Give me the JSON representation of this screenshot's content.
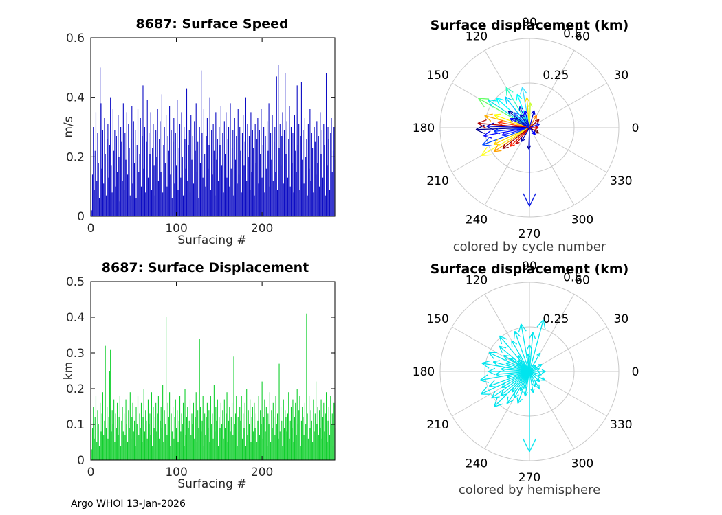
{
  "footer": {
    "text": "Argo WHOI 13-Jan-2026"
  },
  "chart_data": [
    {
      "type": "bar",
      "id": "speed",
      "title": "8687: Surface Speed",
      "ylabel": "m/s",
      "xlabel": "Surfacing #",
      "ylim": [
        0,
        0.6
      ],
      "yticks": [
        0,
        0.2,
        0.4,
        0.6
      ],
      "xlim": [
        0,
        285
      ],
      "xticks": [
        0,
        100,
        200
      ],
      "bar_color": "#0d0dc4",
      "values": [
        0.02,
        0.14,
        0.3,
        0.09,
        0.22,
        0.35,
        0.12,
        0.28,
        0.18,
        0.06,
        0.5,
        0.38,
        0.16,
        0.29,
        0.11,
        0.33,
        0.21,
        0.07,
        0.26,
        0.31,
        0.13,
        0.24,
        0.4,
        0.17,
        0.08,
        0.36,
        0.22,
        0.29,
        0.1,
        0.27,
        0.15,
        0.34,
        0.2,
        0.05,
        0.3,
        0.25,
        0.12,
        0.38,
        0.09,
        0.28,
        0.19,
        0.35,
        0.14,
        0.31,
        0.23,
        0.07,
        0.26,
        0.37,
        0.11,
        0.32,
        0.18,
        0.29,
        0.06,
        0.24,
        0.36,
        0.15,
        0.21,
        0.33,
        0.1,
        0.27,
        0.44,
        0.16,
        0.3,
        0.08,
        0.25,
        0.39,
        0.13,
        0.28,
        0.21,
        0.35,
        0.09,
        0.23,
        0.31,
        0.17,
        0.07,
        0.29,
        0.2,
        0.36,
        0.12,
        0.26,
        0.32,
        0.15,
        0.41,
        0.08,
        0.24,
        0.3,
        0.18,
        0.34,
        0.1,
        0.27,
        0.22,
        0.37,
        0.14,
        0.29,
        0.06,
        0.25,
        0.33,
        0.11,
        0.28,
        0.17,
        0.39,
        0.09,
        0.23,
        0.31,
        0.13,
        0.35,
        0.2,
        0.07,
        0.3,
        0.26,
        0.16,
        0.43,
        0.12,
        0.24,
        0.29,
        0.08,
        0.34,
        0.19,
        0.27,
        0.11,
        0.32,
        0.22,
        0.38,
        0.15,
        0.25,
        0.06,
        0.3,
        0.18,
        0.49,
        0.28,
        0.13,
        0.36,
        0.21,
        0.1,
        0.27,
        0.33,
        0.16,
        0.24,
        0.4,
        0.09,
        0.29,
        0.14,
        0.31,
        0.22,
        0.07,
        0.35,
        0.19,
        0.26,
        0.12,
        0.3,
        0.24,
        0.37,
        0.17,
        0.28,
        0.08,
        0.32,
        0.21,
        0.35,
        0.13,
        0.26,
        0.3,
        0.1,
        0.38,
        0.16,
        0.23,
        0.29,
        0.07,
        0.33,
        0.19,
        0.27,
        0.11,
        0.36,
        0.14,
        0.3,
        0.22,
        0.08,
        0.28,
        0.34,
        0.17,
        0.25,
        0.4,
        0.12,
        0.31,
        0.2,
        0.27,
        0.09,
        0.35,
        0.15,
        0.29,
        0.23,
        0.07,
        0.31,
        0.18,
        0.26,
        0.33,
        0.11,
        0.29,
        0.21,
        0.36,
        0.13,
        0.24,
        0.3,
        0.08,
        0.27,
        0.16,
        0.32,
        0.22,
        0.38,
        0.1,
        0.28,
        0.19,
        0.34,
        0.12,
        0.25,
        0.3,
        0.15,
        0.47,
        0.09,
        0.51,
        0.23,
        0.31,
        0.17,
        0.27,
        0.35,
        0.11,
        0.29,
        0.48,
        0.21,
        0.32,
        0.13,
        0.26,
        0.37,
        0.1,
        0.3,
        0.18,
        0.28,
        0.08,
        0.34,
        0.22,
        0.15,
        0.44,
        0.24,
        0.31,
        0.09,
        0.27,
        0.45,
        0.19,
        0.29,
        0.11,
        0.33,
        0.2,
        0.26,
        0.07,
        0.31,
        0.16,
        0.36,
        0.12,
        0.28,
        0.23,
        0.08,
        0.3,
        0.25,
        0.14,
        0.32,
        0.18,
        0.27,
        0.1,
        0.35,
        0.21,
        0.29,
        0.13,
        0.31,
        0.24,
        0.07,
        0.48,
        0.17,
        0.3,
        0.26,
        0.09,
        0.28,
        0.33,
        0.15,
        0.22,
        0.3,
        0.19
      ]
    },
    {
      "type": "bar",
      "id": "disp",
      "title": "8687: Surface Displacement",
      "ylabel": "km",
      "xlabel": "Surfacing #",
      "ylim": [
        0,
        0.5
      ],
      "yticks": [
        0,
        0.1,
        0.2,
        0.3,
        0.4,
        0.5
      ],
      "xlim": [
        0,
        285
      ],
      "xticks": [
        0,
        100,
        200
      ],
      "bar_color": "#12cf2e",
      "values": [
        0.03,
        0.09,
        0.15,
        0.06,
        0.12,
        0.18,
        0.05,
        0.14,
        0.1,
        0.04,
        0.16,
        0.08,
        0.13,
        0.19,
        0.07,
        0.11,
        0.32,
        0.09,
        0.15,
        0.06,
        0.12,
        0.25,
        0.31,
        0.08,
        0.14,
        0.1,
        0.17,
        0.05,
        0.13,
        0.09,
        0.16,
        0.07,
        0.12,
        0.18,
        0.04,
        0.11,
        0.15,
        0.08,
        0.13,
        0.07,
        0.17,
        0.1,
        0.05,
        0.14,
        0.09,
        0.19,
        0.06,
        0.12,
        0.16,
        0.08,
        0.11,
        0.04,
        0.15,
        0.1,
        0.18,
        0.07,
        0.13,
        0.09,
        0.16,
        0.05,
        0.12,
        0.2,
        0.08,
        0.14,
        0.11,
        0.06,
        0.17,
        0.1,
        0.13,
        0.07,
        0.19,
        0.04,
        0.15,
        0.09,
        0.12,
        0.16,
        0.08,
        0.13,
        0.18,
        0.06,
        0.11,
        0.15,
        0.09,
        0.21,
        0.05,
        0.14,
        0.1,
        0.4,
        0.07,
        0.16,
        0.12,
        0.19,
        0.04,
        0.13,
        0.08,
        0.15,
        0.06,
        0.12,
        0.17,
        0.09,
        0.14,
        0.05,
        0.11,
        0.18,
        0.08,
        0.13,
        0.1,
        0.16,
        0.04,
        0.2,
        0.07,
        0.12,
        0.15,
        0.09,
        0.11,
        0.17,
        0.07,
        0.13,
        0.1,
        0.16,
        0.06,
        0.12,
        0.19,
        0.05,
        0.14,
        0.09,
        0.34,
        0.15,
        0.08,
        0.11,
        0.18,
        0.04,
        0.13,
        0.07,
        0.12,
        0.16,
        0.09,
        0.14,
        0.05,
        0.18,
        0.1,
        0.13,
        0.06,
        0.21,
        0.08,
        0.15,
        0.11,
        0.17,
        0.04,
        0.12,
        0.09,
        0.16,
        0.1,
        0.14,
        0.06,
        0.17,
        0.09,
        0.13,
        0.19,
        0.05,
        0.11,
        0.15,
        0.08,
        0.12,
        0.16,
        0.07,
        0.29,
        0.1,
        0.13,
        0.18,
        0.04,
        0.12,
        0.08,
        0.15,
        0.11,
        0.18,
        0.06,
        0.13,
        0.09,
        0.16,
        0.04,
        0.2,
        0.07,
        0.14,
        0.1,
        0.17,
        0.05,
        0.12,
        0.15,
        0.08,
        0.16,
        0.09,
        0.13,
        0.05,
        0.11,
        0.18,
        0.07,
        0.14,
        0.1,
        0.22,
        0.06,
        0.12,
        0.17,
        0.08,
        0.15,
        0.04,
        0.13,
        0.1,
        0.19,
        0.05,
        0.14,
        0.09,
        0.16,
        0.12,
        0.07,
        0.18,
        0.1,
        0.13,
        0.06,
        0.27,
        0.08,
        0.15,
        0.11,
        0.04,
        0.17,
        0.09,
        0.14,
        0.12,
        0.08,
        0.13,
        0.19,
        0.06,
        0.11,
        0.15,
        0.09,
        0.17,
        0.05,
        0.12,
        0.16,
        0.07,
        0.2,
        0.1,
        0.14,
        0.18,
        0.04,
        0.11,
        0.15,
        0.12,
        0.07,
        0.16,
        0.1,
        0.41,
        0.13,
        0.06,
        0.18,
        0.09,
        0.14,
        0.11,
        0.05,
        0.17,
        0.08,
        0.13,
        0.22,
        0.1,
        0.15,
        0.07,
        0.14,
        0.09,
        0.17,
        0.06,
        0.12,
        0.16,
        0.08,
        0.13,
        0.19,
        0.05,
        0.11,
        0.15,
        0.07,
        0.18,
        0.1,
        0.13,
        0.04,
        0.16,
        0.09
      ]
    },
    {
      "type": "polar_quiver",
      "id": "polar_cycle",
      "title": "Surface displacement (km)",
      "caption": "colored by cycle number",
      "rmax": 0.5,
      "rticks": [
        0.25,
        0.5
      ],
      "rtick_labels": [
        "0.25",
        "0.5"
      ],
      "angle_ticks": [
        0,
        30,
        60,
        90,
        120,
        150,
        180,
        210,
        240,
        270,
        300,
        330
      ],
      "vectors": [
        {
          "a": 270,
          "r": 0.44,
          "c": "#0010e0"
        },
        {
          "a": 268,
          "r": 0.12,
          "c": "#0000a0"
        },
        {
          "a": 150,
          "r": 0.33,
          "c": "#66ff66"
        },
        {
          "a": 146,
          "r": 0.28,
          "c": "#00e8e8"
        },
        {
          "a": 138,
          "r": 0.25,
          "c": "#00ffff"
        },
        {
          "a": 128,
          "r": 0.22,
          "c": "#00d0ff"
        },
        {
          "a": 120,
          "r": 0.26,
          "c": "#30ffc0"
        },
        {
          "a": 110,
          "r": 0.2,
          "c": "#00ffff"
        },
        {
          "a": 100,
          "r": 0.23,
          "c": "#40e0ff"
        },
        {
          "a": 95,
          "r": 0.17,
          "c": "#ffe000"
        },
        {
          "a": 88,
          "r": 0.14,
          "c": "#c8ff30"
        },
        {
          "a": 160,
          "r": 0.21,
          "c": "#ffff00"
        },
        {
          "a": 165,
          "r": 0.26,
          "c": "#ffb000"
        },
        {
          "a": 170,
          "r": 0.18,
          "c": "#ff3000"
        },
        {
          "a": 175,
          "r": 0.29,
          "c": "#b00000"
        },
        {
          "a": 178,
          "r": 0.24,
          "c": "#0000d0"
        },
        {
          "a": 182,
          "r": 0.3,
          "c": "#000090"
        },
        {
          "a": 186,
          "r": 0.2,
          "c": "#0030ff"
        },
        {
          "a": 190,
          "r": 0.26,
          "c": "#0000ff"
        },
        {
          "a": 195,
          "r": 0.16,
          "c": "#2020ff"
        },
        {
          "a": 200,
          "r": 0.28,
          "c": "#0048ff"
        },
        {
          "a": 205,
          "r": 0.22,
          "c": "#ffd000"
        },
        {
          "a": 210,
          "r": 0.31,
          "c": "#ffff20"
        },
        {
          "a": 214,
          "r": 0.24,
          "c": "#ffa000"
        },
        {
          "a": 218,
          "r": 0.19,
          "c": "#900000"
        },
        {
          "a": 224,
          "r": 0.15,
          "c": "#ff2000"
        },
        {
          "a": 230,
          "r": 0.12,
          "c": "#c00000"
        },
        {
          "a": 240,
          "r": 0.09,
          "c": "#0000b0"
        },
        {
          "a": 155,
          "r": 0.12,
          "c": "#0000ff"
        },
        {
          "a": 148,
          "r": 0.1,
          "c": "#0020d0"
        },
        {
          "a": 142,
          "r": 0.15,
          "c": "#0000a8"
        },
        {
          "a": 135,
          "r": 0.12,
          "c": "#3060ff"
        },
        {
          "a": 125,
          "r": 0.09,
          "c": "#0000c0"
        },
        {
          "a": 115,
          "r": 0.13,
          "c": "#0038e0"
        },
        {
          "a": 105,
          "r": 0.1,
          "c": "#0000ff"
        },
        {
          "a": 75,
          "r": 0.1,
          "c": "#0000d0"
        },
        {
          "a": 60,
          "r": 0.08,
          "c": "#ff8000"
        },
        {
          "a": 40,
          "r": 0.07,
          "c": "#a00000"
        },
        {
          "a": 20,
          "r": 0.06,
          "c": "#0000ff"
        },
        {
          "a": 0,
          "r": 0.05,
          "c": "#d00000"
        },
        {
          "a": 330,
          "r": 0.06,
          "c": "#600000"
        },
        {
          "a": 310,
          "r": 0.05,
          "c": "#0000ff"
        }
      ]
    },
    {
      "type": "polar_quiver",
      "id": "polar_hemi",
      "title": "Surface displacement (km)",
      "caption": "colored by hemisphere",
      "rmax": 0.5,
      "rticks": [
        0.25,
        0.5
      ],
      "rtick_labels": [
        "0.25",
        "0.5"
      ],
      "angle_ticks": [
        0,
        30,
        60,
        90,
        120,
        150,
        180,
        210,
        240,
        270,
        300,
        330
      ],
      "default_color": "#00e5ee",
      "vectors": [
        {
          "a": 270,
          "r": 0.45
        },
        {
          "a": 75,
          "r": 0.3
        },
        {
          "a": 100,
          "r": 0.27
        },
        {
          "a": 85,
          "r": 0.22
        },
        {
          "a": 110,
          "r": 0.24
        },
        {
          "a": 120,
          "r": 0.2
        },
        {
          "a": 130,
          "r": 0.26
        },
        {
          "a": 140,
          "r": 0.22
        },
        {
          "a": 148,
          "r": 0.17
        },
        {
          "a": 155,
          "r": 0.25
        },
        {
          "a": 160,
          "r": 0.14
        },
        {
          "a": 165,
          "r": 0.21
        },
        {
          "a": 170,
          "r": 0.27
        },
        {
          "a": 175,
          "r": 0.16
        },
        {
          "a": 180,
          "r": 0.23
        },
        {
          "a": 185,
          "r": 0.19
        },
        {
          "a": 190,
          "r": 0.28
        },
        {
          "a": 195,
          "r": 0.13
        },
        {
          "a": 200,
          "r": 0.24
        },
        {
          "a": 205,
          "r": 0.3
        },
        {
          "a": 210,
          "r": 0.18
        },
        {
          "a": 215,
          "r": 0.26
        },
        {
          "a": 220,
          "r": 0.21
        },
        {
          "a": 225,
          "r": 0.28
        },
        {
          "a": 230,
          "r": 0.15
        },
        {
          "a": 235,
          "r": 0.22
        },
        {
          "a": 240,
          "r": 0.17
        },
        {
          "a": 245,
          "r": 0.12
        },
        {
          "a": 250,
          "r": 0.19
        },
        {
          "a": 255,
          "r": 0.1
        },
        {
          "a": 260,
          "r": 0.14
        },
        {
          "a": 280,
          "r": 0.12
        },
        {
          "a": 290,
          "r": 0.09
        },
        {
          "a": 300,
          "r": 0.11
        },
        {
          "a": 315,
          "r": 0.08
        },
        {
          "a": 330,
          "r": 0.1
        },
        {
          "a": 345,
          "r": 0.07
        },
        {
          "a": 0,
          "r": 0.09
        },
        {
          "a": 15,
          "r": 0.06
        },
        {
          "a": 30,
          "r": 0.08
        },
        {
          "a": 45,
          "r": 0.05
        },
        {
          "a": 60,
          "r": 0.12
        },
        {
          "a": 90,
          "r": 0.15
        },
        {
          "a": 95,
          "r": 0.1
        },
        {
          "a": 125,
          "r": 0.11
        },
        {
          "a": 135,
          "r": 0.09
        },
        {
          "a": 145,
          "r": 0.13
        },
        {
          "a": 150,
          "r": 0.08
        }
      ]
    }
  ]
}
